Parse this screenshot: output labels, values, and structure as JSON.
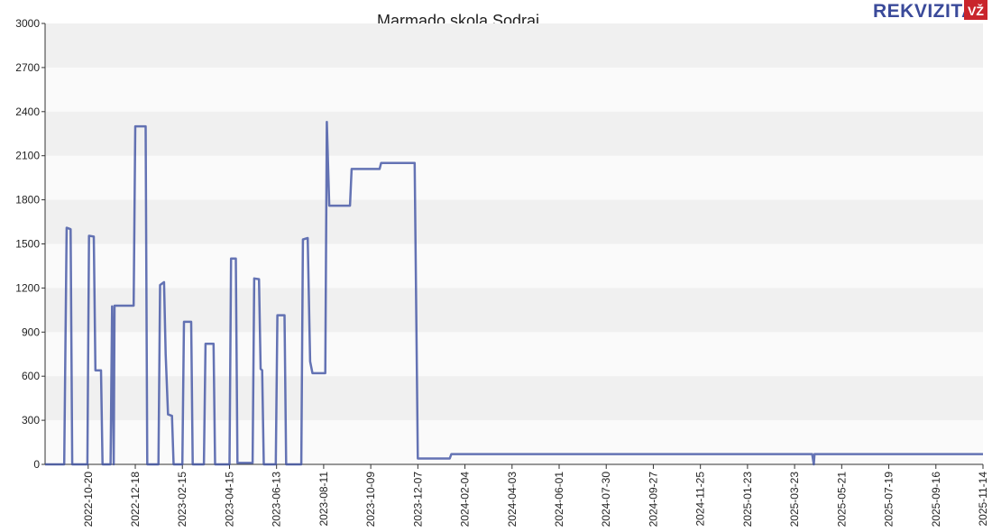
{
  "chart_data": {
    "type": "line",
    "title": "Marmado skola Sodrai",
    "logo": {
      "text": "REKVIZITAI",
      "badge": "VŽ"
    },
    "x": [
      "2022-08-27",
      "2022-09-20",
      "2022-09-23",
      "2022-09-28",
      "2022-09-30",
      "2022-10-19",
      "2022-10-21",
      "2022-10-27",
      "2022-10-29",
      "2022-11-05",
      "2022-11-07",
      "2022-11-17",
      "2022-11-19",
      "2022-11-21",
      "2022-11-22",
      "2022-12-16",
      "2022-12-18",
      "2022-12-31",
      "2023-01-02",
      "2023-01-16",
      "2023-01-18",
      "2023-01-23",
      "2023-01-25",
      "2023-01-28",
      "2023-02-02",
      "2023-02-04",
      "2023-02-15",
      "2023-02-17",
      "2023-02-26",
      "2023-02-28",
      "2023-03-14",
      "2023-03-16",
      "2023-03-26",
      "2023-03-28",
      "2023-04-15",
      "2023-04-17",
      "2023-04-23",
      "2023-04-25",
      "2023-05-14",
      "2023-05-16",
      "2023-05-22",
      "2023-05-24",
      "2023-05-26",
      "2023-05-28",
      "2023-06-12",
      "2023-06-14",
      "2023-06-23",
      "2023-06-25",
      "2023-07-14",
      "2023-07-16",
      "2023-07-22",
      "2023-07-25",
      "2023-07-28",
      "2023-08-13",
      "2023-08-15",
      "2023-08-18",
      "2023-09-13",
      "2023-09-15",
      "2023-10-20",
      "2023-10-22",
      "2023-12-03",
      "2023-12-07",
      "2024-01-16",
      "2024-01-18",
      "2025-04-14",
      "2025-04-16",
      "2025-04-17",
      "2025-11-14"
    ],
    "series": [
      {
        "name": "Marmado skola Sodrai",
        "color": "#3f51a3",
        "values": [
          0,
          0,
          1610,
          1600,
          0,
          0,
          1555,
          1550,
          640,
          640,
          0,
          0,
          1075,
          0,
          1080,
          1080,
          2300,
          2300,
          0,
          0,
          1220,
          1240,
          750,
          340,
          330,
          0,
          0,
          970,
          970,
          0,
          0,
          820,
          820,
          0,
          0,
          1400,
          1400,
          10,
          10,
          1265,
          1260,
          650,
          640,
          0,
          0,
          1015,
          1015,
          0,
          0,
          1530,
          1540,
          700,
          620,
          620,
          2330,
          1760,
          1760,
          2010,
          2010,
          2050,
          2050,
          40,
          40,
          70,
          70,
          0,
          70,
          70
        ]
      }
    ],
    "xlim": [
      "2022-08-27",
      "2025-11-14"
    ],
    "xticks": [
      "2022-10-20",
      "2022-12-18",
      "2023-02-15",
      "2023-04-15",
      "2023-06-13",
      "2023-08-11",
      "2023-10-09",
      "2023-12-07",
      "2024-02-04",
      "2024-04-03",
      "2024-06-01",
      "2024-07-30",
      "2024-09-27",
      "2024-11-25",
      "2025-01-23",
      "2025-03-23",
      "2025-05-21",
      "2025-07-19",
      "2025-09-16",
      "2025-11-14"
    ],
    "ylim": [
      0,
      3000
    ],
    "yticks": [
      0,
      300,
      600,
      900,
      1200,
      1500,
      1800,
      2100,
      2400,
      2700,
      3000
    ],
    "grid": true
  }
}
